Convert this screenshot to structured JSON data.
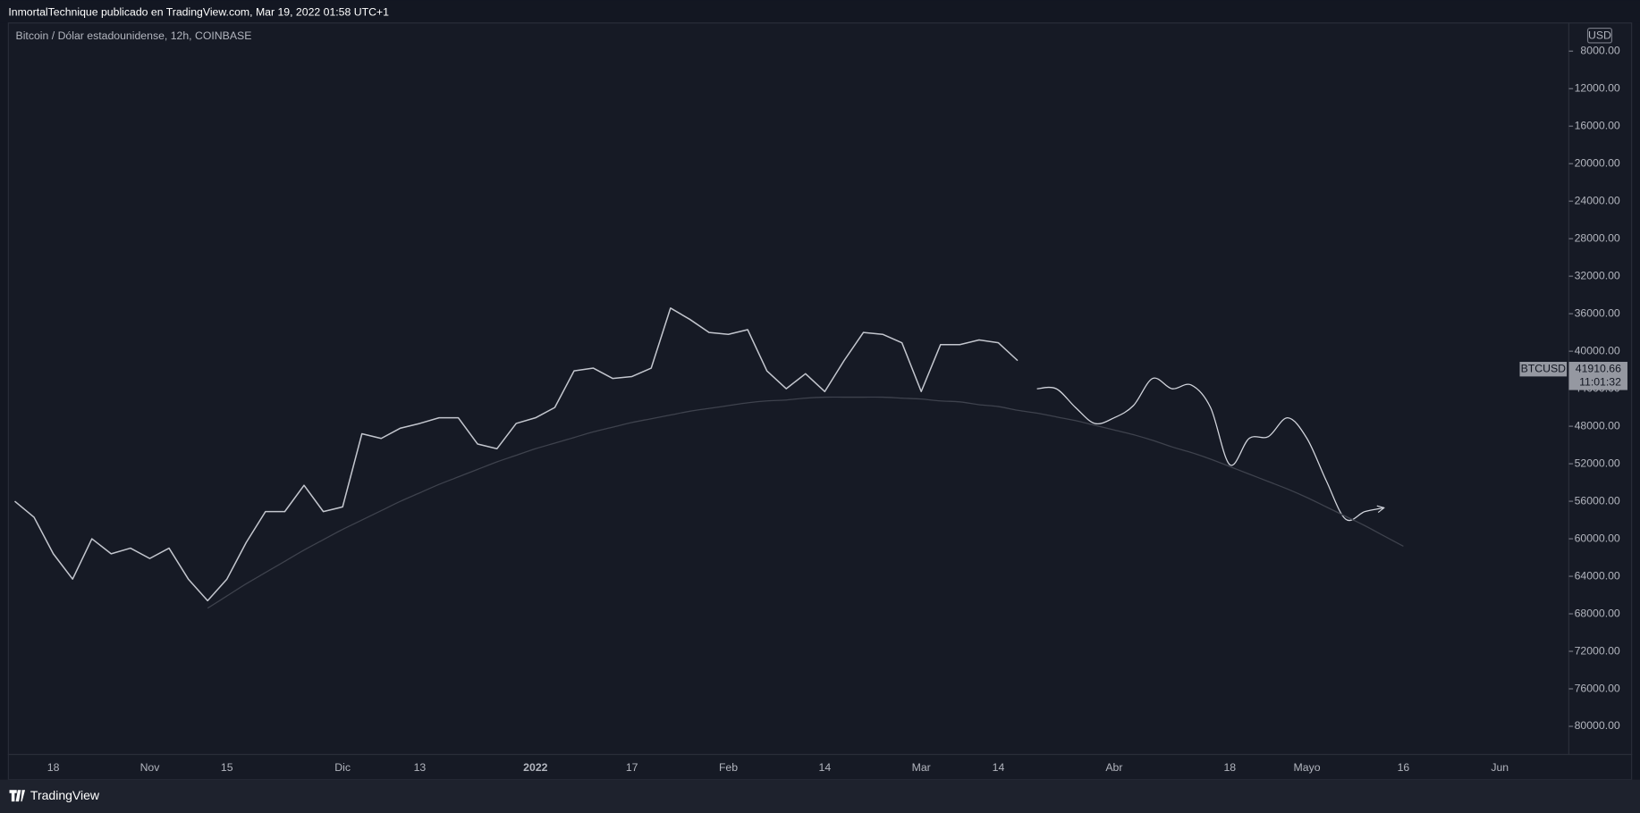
{
  "header": {
    "text": "InmortalTechnique publicado en TradingView.com, Mar 19, 2022 01:58 UTC+1"
  },
  "footer": {
    "brand": "TradingView"
  },
  "chart_data": {
    "type": "line",
    "title": "Bitcoin / Dólar estadounidense, 12h, COINBASE",
    "currency": "USD",
    "last_price": 41910.66,
    "countdown": "11:01:32",
    "y_inverted": true,
    "grid": false,
    "ylim": [
      5000,
      83000
    ],
    "yticks": [
      {
        "value": 8000,
        "label": "8000.00"
      },
      {
        "value": 12000,
        "label": "12000.00"
      },
      {
        "value": 16000,
        "label": "16000.00"
      },
      {
        "value": 20000,
        "label": "20000.00"
      },
      {
        "value": 24000,
        "label": "24000.00"
      },
      {
        "value": 28000,
        "label": "28000.00"
      },
      {
        "value": 32000,
        "label": "32000.00"
      },
      {
        "value": 36000,
        "label": "36000.00"
      },
      {
        "value": 40000,
        "label": "40000.00"
      },
      {
        "value": 44000,
        "label": "44000.00"
      },
      {
        "value": 48000,
        "label": "48000.00"
      },
      {
        "value": 52000,
        "label": "52000.00"
      },
      {
        "value": 56000,
        "label": "56000.00"
      },
      {
        "value": 60000,
        "label": "60000.00"
      },
      {
        "value": 64000,
        "label": "64000.00"
      },
      {
        "value": 68000,
        "label": "68000.00"
      },
      {
        "value": 72000,
        "label": "72000.00"
      },
      {
        "value": 76000,
        "label": "76000.00"
      },
      {
        "value": 80000,
        "label": "80000.00"
      }
    ],
    "categories": [
      null,
      null,
      "18",
      null,
      null,
      null,
      null,
      "Nov",
      null,
      null,
      null,
      "15",
      null,
      null,
      null,
      null,
      null,
      "Dic",
      null,
      null,
      null,
      "13",
      null,
      null,
      null,
      null,
      null,
      "2022",
      null,
      null,
      null,
      null,
      "17",
      null,
      null,
      null,
      null,
      "Feb",
      null,
      null,
      null,
      null,
      "14",
      null,
      null,
      null,
      null,
      "Mar",
      null,
      null,
      null,
      "14",
      null,
      null,
      null,
      null,
      null,
      "Abr",
      null,
      null,
      null,
      null,
      null,
      "18",
      null,
      null,
      null,
      "Mayo",
      null,
      null,
      null,
      null,
      "16",
      null,
      null,
      null,
      null,
      "Jun",
      null,
      null,
      null
    ],
    "series": [
      {
        "name": "BTCUSD",
        "color": "#c3c6ce",
        "smooth": false,
        "values": [
          56000,
          57700,
          61600,
          64300,
          60000,
          61600,
          61000,
          62100,
          61000,
          64300,
          66600,
          64300,
          60400,
          57100,
          57100,
          54300,
          57100,
          56600,
          48800,
          49300,
          48200,
          47700,
          47100,
          47100,
          49900,
          50400,
          47700,
          47100,
          46000,
          42100,
          41800,
          42900,
          42700,
          41800,
          35400,
          36600,
          38000,
          38200,
          37700,
          42100,
          44000,
          42400,
          44300,
          41000,
          38000,
          38200,
          39100,
          44300,
          39300,
          39300,
          38800,
          39100,
          41000,
          null,
          null,
          null,
          null,
          null,
          null,
          null,
          null,
          null,
          null,
          null,
          null,
          null,
          null,
          null,
          null,
          null,
          null,
          null,
          null,
          null,
          null,
          null,
          null,
          null,
          null,
          null,
          null
        ]
      },
      {
        "color": "#d1d4dc",
        "smooth": true,
        "arrow": true,
        "values": [
          null,
          null,
          null,
          null,
          null,
          null,
          null,
          null,
          null,
          null,
          null,
          null,
          null,
          null,
          null,
          null,
          null,
          null,
          null,
          null,
          null,
          null,
          null,
          null,
          null,
          null,
          null,
          null,
          null,
          null,
          null,
          null,
          null,
          null,
          null,
          null,
          null,
          null,
          null,
          null,
          null,
          null,
          null,
          null,
          null,
          null,
          null,
          null,
          null,
          null,
          null,
          null,
          null,
          44000,
          44000,
          46000,
          47700,
          47100,
          45800,
          42900,
          44000,
          43600,
          46000,
          52100,
          49300,
          49100,
          47100,
          49300,
          53800,
          57900,
          57100,
          56700,
          null,
          null,
          null,
          null,
          null,
          null,
          null,
          null,
          null
        ]
      },
      {
        "color": "#3e424d",
        "smooth": true,
        "values": [
          null,
          null,
          null,
          null,
          null,
          null,
          null,
          null,
          null,
          null,
          67400,
          66100,
          64800,
          63600,
          62400,
          61200,
          60100,
          59000,
          58000,
          57000,
          56000,
          55100,
          54200,
          53400,
          52600,
          51800,
          51100,
          50400,
          49800,
          49200,
          48600,
          48100,
          47600,
          47200,
          46800,
          46400,
          46100,
          45800,
          45500,
          45300,
          45200,
          45000,
          44900,
          44900,
          44900,
          44900,
          45000,
          45100,
          45300,
          45400,
          45700,
          45900,
          46300,
          46600,
          47000,
          47400,
          47900,
          48400,
          48900,
          49500,
          50200,
          50800,
          51500,
          52300,
          53100,
          53900,
          54700,
          55600,
          56600,
          57600,
          58600,
          59700,
          60800,
          null,
          null,
          null,
          null,
          null,
          null,
          null,
          null
        ]
      }
    ]
  }
}
